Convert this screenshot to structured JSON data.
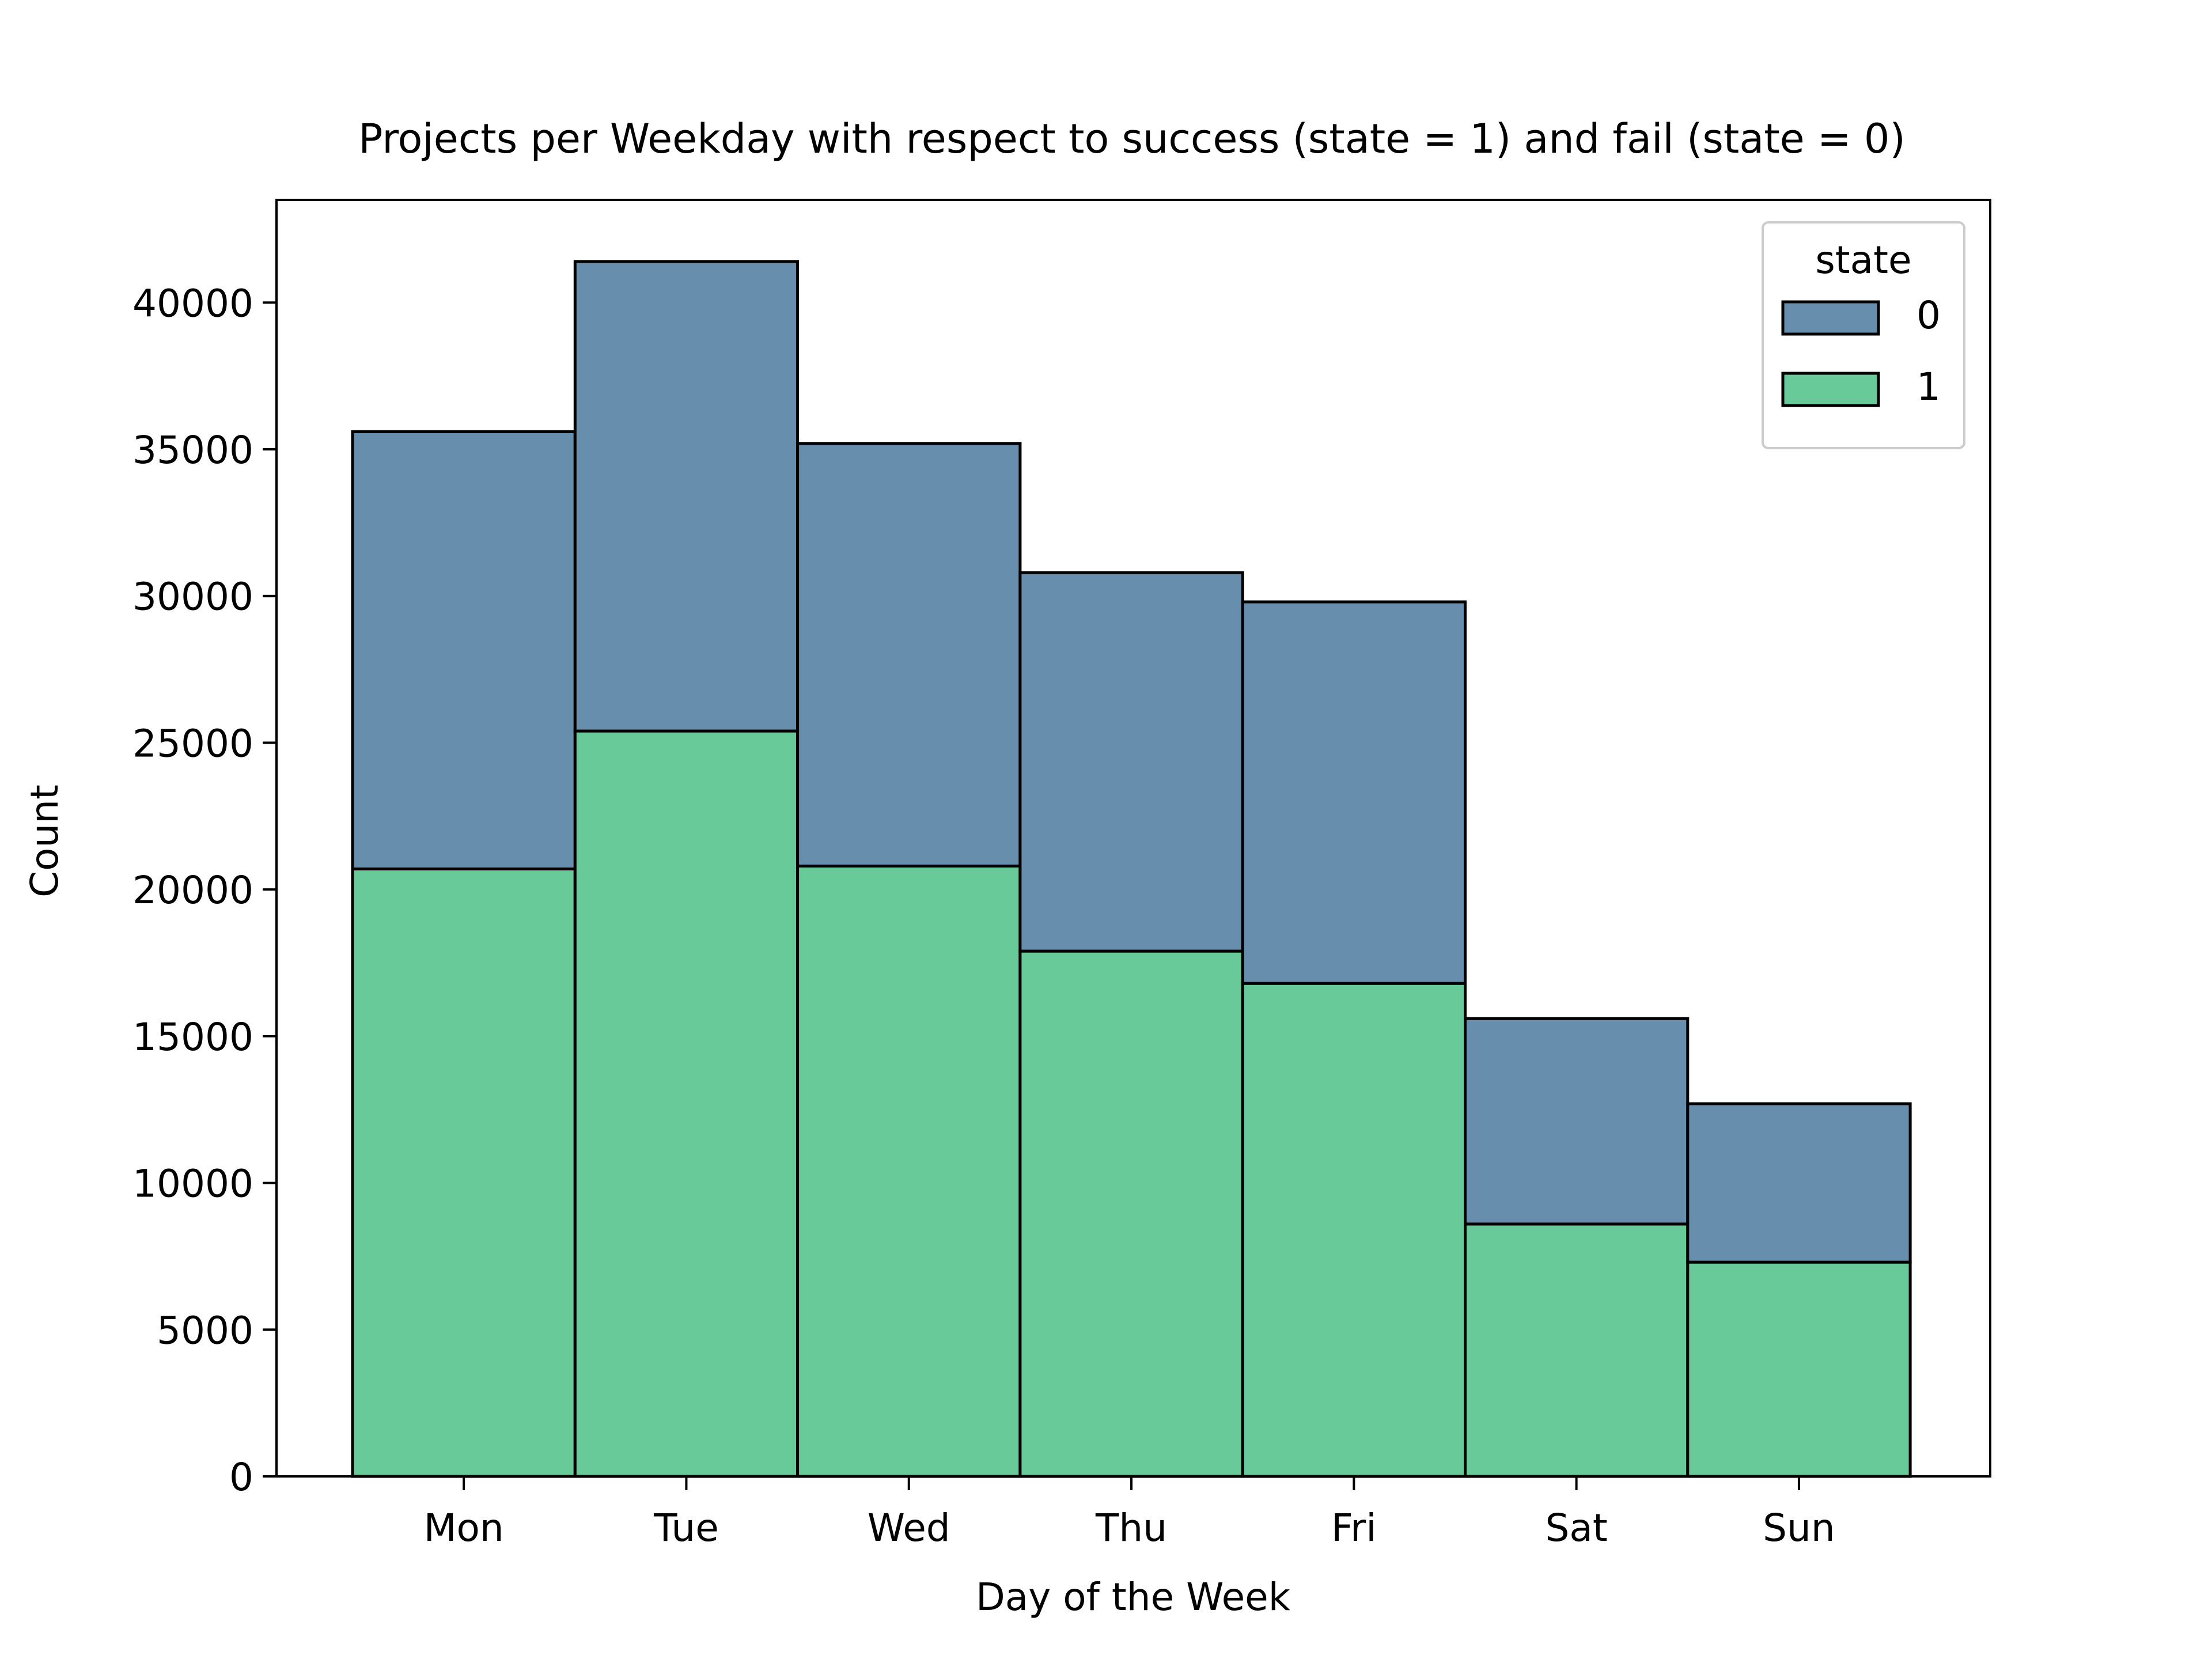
{
  "chart_data": {
    "type": "bar",
    "stacked": true,
    "title": "Projects per Weekday with respect to success (state = 1) and fail (state = 0)",
    "xlabel": "Day of the Week",
    "ylabel": "Count",
    "categories": [
      "Mon",
      "Tue",
      "Wed",
      "Thu",
      "Fri",
      "Sat",
      "Sun"
    ],
    "ylim": [
      0,
      43500
    ],
    "yticks": [
      0,
      5000,
      10000,
      15000,
      20000,
      25000,
      30000,
      35000,
      40000
    ],
    "grid": false,
    "legend": {
      "title": "state",
      "placement": "top-right"
    },
    "series": [
      {
        "name": "1",
        "color": "#68c999",
        "values": [
          20700,
          25400,
          20800,
          17900,
          16800,
          8600,
          7300
        ]
      },
      {
        "name": "0",
        "color": "#678ead",
        "values": [
          14900,
          16000,
          14400,
          12900,
          13000,
          7000,
          5400
        ]
      }
    ]
  }
}
